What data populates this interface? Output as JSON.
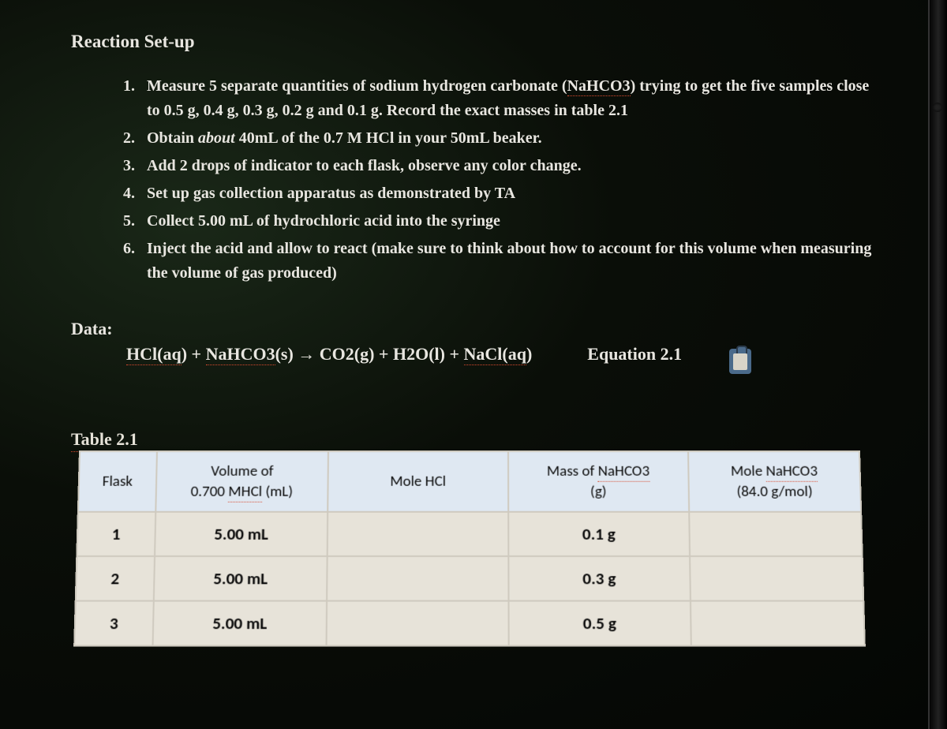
{
  "title": "Reaction Set-up",
  "procedure": [
    {
      "n": "1.",
      "text_parts": [
        "Measure 5 separate quantities of sodium hydrogen carbonate (",
        {
          "u": "NaHCO3"
        },
        ") trying to get the five samples close to 0.5 g, 0.4 g, 0.3 g, 0.2 g and 0.1 g.  Record the exact masses in table 2.1"
      ]
    },
    {
      "n": "2.",
      "text_parts": [
        "Obtain ",
        {
          "i": "about"
        },
        " 40mL of the 0.7 M HCl in your 50mL beaker."
      ]
    },
    {
      "n": "3.",
      "text_parts": [
        "Add 2 drops of indicator to each flask, observe any color change."
      ]
    },
    {
      "n": "4.",
      "text_parts": [
        "Set up gas collection apparatus as demonstrated by TA"
      ]
    },
    {
      "n": "5.",
      "text_parts": [
        "Collect 5.00 mL of hydrochloric acid into the syringe"
      ]
    },
    {
      "n": "6.",
      "text_parts": [
        "Inject the acid and allow to react (make sure to think about how to account for this volume when measuring the volume of gas produced)"
      ]
    }
  ],
  "data_label": "Data:",
  "equation": {
    "parts": [
      {
        "u": "HCl(aq"
      },
      ")  +  ",
      {
        "u": "NaHCO3"
      },
      "(s)  →  CO2(g)  +  H2O(l)  +  ",
      {
        "u": "NaCl(aq"
      },
      ")"
    ],
    "label": "Equation 2.1"
  },
  "table": {
    "label": "Table 2.1",
    "columns": [
      {
        "line1": "Flask",
        "line2": ""
      },
      {
        "line1": "Volume of",
        "line2_parts": [
          "0.700 ",
          {
            "u": "MHCl"
          },
          " (mL)"
        ]
      },
      {
        "line1": "Mole HCl",
        "line2": ""
      },
      {
        "line1_parts": [
          "Mass of ",
          {
            "u": "NaHCO3"
          }
        ],
        "line2": "(g)"
      },
      {
        "line1_parts": [
          "Mole ",
          {
            "u": "NaHCO3"
          }
        ],
        "line2": "(84.0 g/mol)"
      }
    ],
    "rows": [
      [
        "1",
        "5.00 mL",
        "",
        "0.1 g",
        ""
      ],
      [
        "2",
        "5.00 mL",
        "",
        "0.3 g",
        ""
      ],
      [
        "3",
        "5.00 mL",
        "",
        "0.5 g",
        ""
      ]
    ],
    "header_bg": "#dfe8f2",
    "cell_bg": "#e7e3d9",
    "border_color": "#cfcabf",
    "text_color": "#0a0a0a"
  },
  "colors": {
    "page_text": "#e8e6e0",
    "underline": "#d94a2e"
  }
}
